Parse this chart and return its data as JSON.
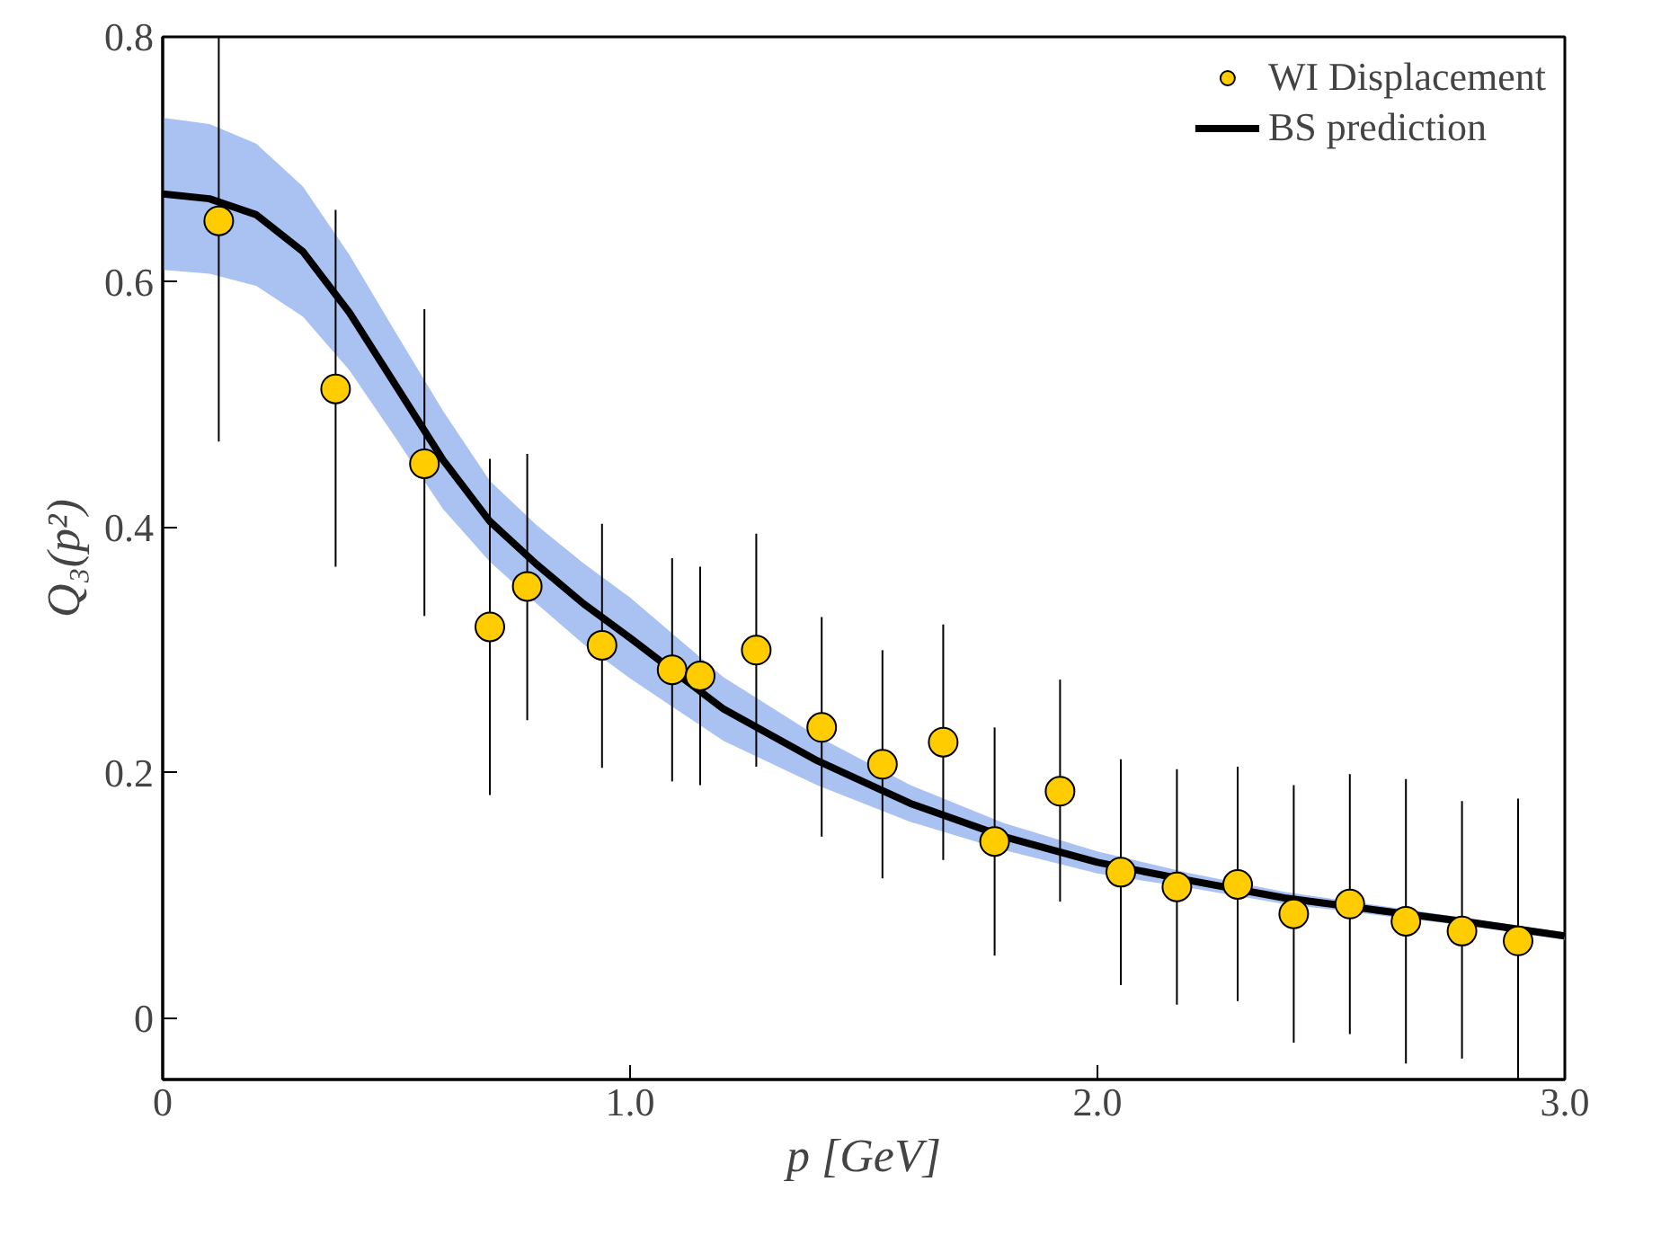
{
  "chart_data": {
    "type": "scatter",
    "xlabel": "p [GeV]",
    "ylabel": "Q₃(p²)",
    "xlim": [
      0,
      3
    ],
    "ylim": [
      -0.05,
      0.8
    ],
    "xticks": [
      0,
      {
        "value": 1,
        "label": "1.0"
      },
      {
        "value": 2,
        "label": "2.0"
      },
      {
        "value": 3,
        "label": "3.0"
      }
    ],
    "yticks": [
      0,
      0.2,
      0.4,
      0.6,
      0.8
    ],
    "grid": false,
    "legend": "top right",
    "series": [
      {
        "name": "WI Displacement",
        "marker": "circle",
        "color": "#ffcc00",
        "x": [
          0.12,
          0.37,
          0.56,
          0.7,
          0.78,
          0.94,
          1.09,
          1.15,
          1.27,
          1.41,
          1.54,
          1.67,
          1.78,
          1.92,
          2.05,
          2.17,
          2.3,
          2.42,
          2.54,
          2.66,
          2.78,
          2.9
        ],
        "values": [
          0.65,
          0.513,
          0.452,
          0.319,
          0.352,
          0.304,
          0.284,
          0.279,
          0.3,
          0.237,
          0.207,
          0.225,
          0.144,
          0.185,
          0.119,
          0.107,
          0.109,
          0.085,
          0.093,
          0.079,
          0.071,
          0.063
        ],
        "errors": [
          [
            0.47,
            0.8
          ],
          [
            0.368,
            0.659
          ],
          [
            0.328,
            0.578
          ],
          [
            0.182,
            0.456
          ],
          [
            0.243,
            0.46
          ],
          [
            0.204,
            0.403
          ],
          [
            0.193,
            0.375
          ],
          [
            0.19,
            0.368
          ],
          [
            0.205,
            0.395
          ],
          [
            0.148,
            0.327
          ],
          [
            0.114,
            0.3
          ],
          [
            0.129,
            0.321
          ],
          [
            0.051,
            0.237
          ],
          [
            0.095,
            0.276
          ],
          [
            0.027,
            0.211
          ],
          [
            0.011,
            0.203
          ],
          [
            0.014,
            0.205
          ],
          [
            -0.02,
            0.19
          ],
          [
            -0.013,
            0.199
          ],
          [
            -0.037,
            0.195
          ],
          [
            -0.033,
            0.177
          ],
          [
            -0.05,
            0.179
          ]
        ]
      },
      {
        "name": "BS prediction",
        "type": "line",
        "color": "#000000",
        "line_style": "solid",
        "x": [
          0,
          0.1,
          0.2,
          0.3,
          0.4,
          0.5,
          0.6,
          0.7,
          0.8,
          0.9,
          1.0,
          1.2,
          1.4,
          1.6,
          1.8,
          2.0,
          2.2,
          2.4,
          2.6,
          2.8,
          3.0
        ],
        "values": [
          0.672,
          0.668,
          0.655,
          0.625,
          0.575,
          0.515,
          0.455,
          0.405,
          0.37,
          0.338,
          0.31,
          0.252,
          0.21,
          0.175,
          0.148,
          0.127,
          0.112,
          0.098,
          0.088,
          0.078,
          0.067
        ],
        "lower": [
          0.61,
          0.607,
          0.597,
          0.572,
          0.528,
          0.472,
          0.415,
          0.372,
          0.338,
          0.305,
          0.277,
          0.226,
          0.19,
          0.16,
          0.137,
          0.118,
          0.106,
          0.093,
          0.084,
          0.075,
          0.064
        ],
        "upper": [
          0.734,
          0.729,
          0.713,
          0.678,
          0.622,
          0.558,
          0.495,
          0.438,
          0.402,
          0.371,
          0.343,
          0.278,
          0.23,
          0.19,
          0.159,
          0.136,
          0.118,
          0.103,
          0.092,
          0.081,
          0.07
        ]
      }
    ]
  }
}
